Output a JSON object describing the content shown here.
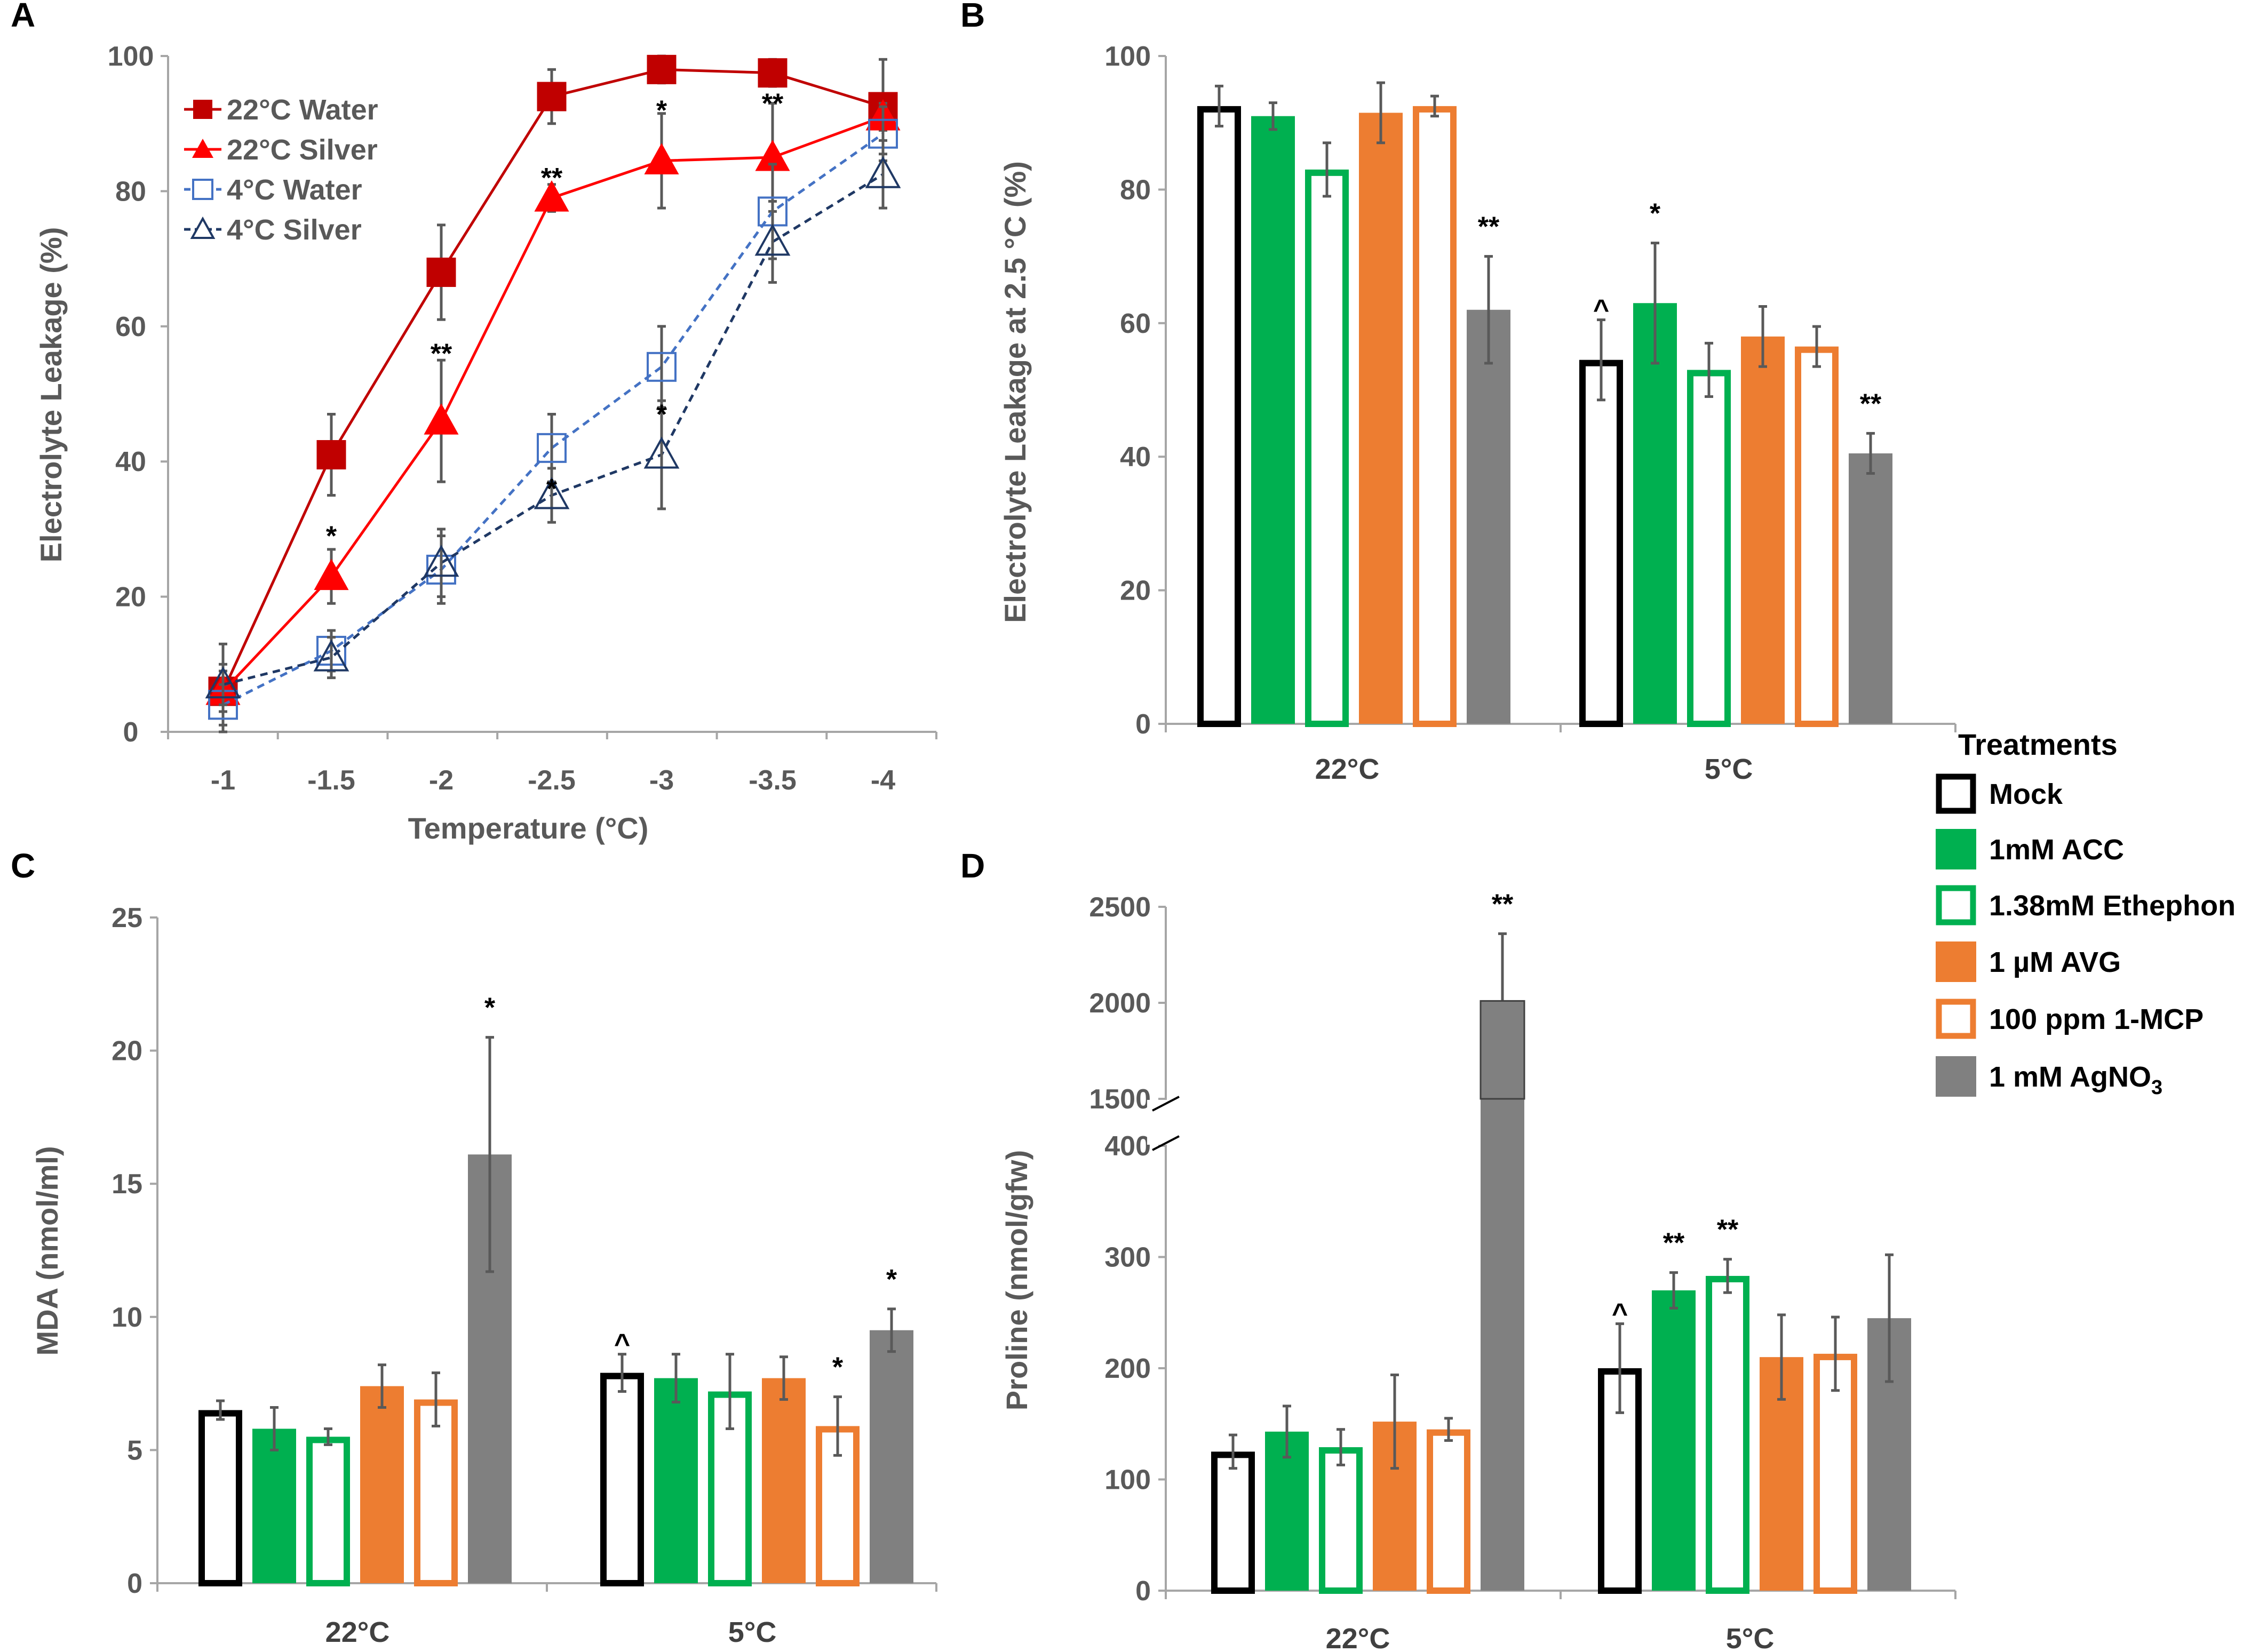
{
  "panels": {
    "A": "A",
    "B": "B",
    "C": "C",
    "D": "D"
  },
  "colors": {
    "water22": "#C00000",
    "silver22": "#FF0000",
    "water4": "#4472C4",
    "silver4": "#1F3864",
    "mock": "#000000",
    "acc": "#00B050",
    "ethephon": "#00B050",
    "avg": "#ED7D31",
    "mcp": "#ED7D31",
    "agno3": "#808080",
    "error": "#595959",
    "axis": "#a6a6a6"
  },
  "treatments": {
    "title": "Treatments",
    "items": [
      {
        "key": "mock",
        "label": "Mock",
        "style": "outline"
      },
      {
        "key": "acc",
        "label": "1mM ACC",
        "style": "fill"
      },
      {
        "key": "ethephon",
        "label": "1.38mM Ethephon",
        "style": "outline"
      },
      {
        "key": "avg",
        "label": "1 µM AVG",
        "style": "fill"
      },
      {
        "key": "mcp",
        "label": "100 ppm 1-MCP",
        "style": "outline"
      },
      {
        "key": "agno3",
        "label": "1 mM AgNO",
        "sub": "3",
        "style": "fill"
      }
    ]
  },
  "chart_data": [
    {
      "id": "A",
      "type": "line",
      "xlabel": "Temperature (°C)",
      "ylabel": "Electrolyte Leakage (%)",
      "ylim": [
        0,
        100
      ],
      "yticks": [
        0,
        20,
        40,
        60,
        80,
        100
      ],
      "categories": [
        "-1",
        "-1.5",
        "-2",
        "-2.5",
        "-3",
        "-3.5",
        "-4"
      ],
      "series": [
        {
          "name": "22°C Water",
          "marker": "square-filled",
          "dash": false,
          "values": [
            6,
            41,
            68,
            94,
            98,
            97.5,
            92.5
          ],
          "err": [
            7,
            6,
            7,
            4,
            2,
            2,
            7
          ]
        },
        {
          "name": "22°C Silver",
          "marker": "triangle-filled",
          "dash": false,
          "values": [
            6,
            23,
            46,
            79,
            84.5,
            85,
            91
          ],
          "err": [
            3,
            4,
            9,
            2,
            7,
            8,
            2
          ]
        },
        {
          "name": "4°C Water",
          "marker": "square-open",
          "dash": true,
          "values": [
            4,
            12,
            24,
            42,
            54,
            77,
            88.5
          ],
          "err": [
            3,
            3,
            5,
            5,
            6,
            7,
            4
          ]
        },
        {
          "name": "4°C Silver",
          "marker": "triangle-open",
          "dash": true,
          "values": [
            7,
            11,
            25,
            35,
            41,
            72.5,
            82.5
          ],
          "err": [
            3,
            3,
            5,
            4,
            8,
            6,
            5
          ]
        }
      ],
      "annotations": [
        {
          "x": "-1.5",
          "y": 29,
          "text": "*"
        },
        {
          "x": "-2",
          "y": 56,
          "text": "**"
        },
        {
          "x": "-2.5",
          "y": 82,
          "text": "**"
        },
        {
          "x": "-2.5",
          "y": 36,
          "text": "*"
        },
        {
          "x": "-3",
          "y": 92,
          "text": "*"
        },
        {
          "x": "-3",
          "y": 47,
          "text": "*"
        },
        {
          "x": "-3.5",
          "y": 93,
          "text": "**"
        }
      ]
    },
    {
      "id": "B",
      "type": "bar",
      "xlabel": "",
      "ylabel": "Electrolyte Leakage at 2.5 °C (%)",
      "ylim": [
        0,
        100
      ],
      "yticks": [
        0,
        20,
        40,
        60,
        80,
        100
      ],
      "categories": [
        "22°C",
        "5°C"
      ],
      "series": [
        {
          "key": "mock",
          "values": [
            92.5,
            54.5
          ],
          "err": [
            3,
            6
          ]
        },
        {
          "key": "acc",
          "values": [
            91,
            63
          ],
          "err": [
            2,
            9
          ]
        },
        {
          "key": "ethephon",
          "values": [
            83,
            53
          ],
          "err": [
            4,
            4
          ]
        },
        {
          "key": "avg",
          "values": [
            91.5,
            58
          ],
          "err": [
            4.5,
            4.5
          ]
        },
        {
          "key": "mcp",
          "values": [
            92.5,
            56.5
          ],
          "err": [
            1.5,
            3
          ]
        },
        {
          "key": "agno3",
          "values": [
            62,
            40.5
          ],
          "err": [
            8,
            3
          ]
        }
      ],
      "annotations": [
        {
          "cat": 0,
          "series": 5,
          "text": "**"
        },
        {
          "cat": 1,
          "series": 0,
          "text": "^"
        },
        {
          "cat": 1,
          "series": 1,
          "text": "*"
        },
        {
          "cat": 1,
          "series": 5,
          "text": "**"
        }
      ]
    },
    {
      "id": "C",
      "type": "bar",
      "xlabel": "",
      "ylabel": "MDA (nmol/ml)",
      "ylim": [
        0,
        25
      ],
      "yticks": [
        0,
        5,
        10,
        15,
        20,
        25
      ],
      "categories": [
        "22°C",
        "5°C"
      ],
      "series": [
        {
          "key": "mock",
          "values": [
            6.5,
            7.9
          ],
          "err": [
            0.35,
            0.7
          ]
        },
        {
          "key": "acc",
          "values": [
            5.8,
            7.7
          ],
          "err": [
            0.8,
            0.9
          ]
        },
        {
          "key": "ethephon",
          "values": [
            5.5,
            7.2
          ],
          "err": [
            0.3,
            1.4
          ]
        },
        {
          "key": "avg",
          "values": [
            7.4,
            7.7
          ],
          "err": [
            0.8,
            0.8
          ]
        },
        {
          "key": "mcp",
          "values": [
            6.9,
            5.9
          ],
          "err": [
            1,
            1.1
          ]
        },
        {
          "key": "agno3",
          "values": [
            16.1,
            9.5
          ],
          "err": [
            4.4,
            0.8
          ]
        }
      ],
      "annotations": [
        {
          "cat": 0,
          "series": 5,
          "text": "*"
        },
        {
          "cat": 1,
          "series": 0,
          "text": "^"
        },
        {
          "cat": 1,
          "series": 4,
          "text": "*"
        },
        {
          "cat": 1,
          "series": 5,
          "text": "*"
        }
      ]
    },
    {
      "id": "D",
      "type": "bar",
      "xlabel": "",
      "ylabel": "Proline (nmol/gfw)",
      "ylim": [
        0,
        2500
      ],
      "axis_break": [
        400,
        1500
      ],
      "yticks": [
        0,
        100,
        200,
        300,
        400,
        1500,
        2000,
        2500
      ],
      "categories": [
        "22°C",
        "5°C"
      ],
      "series": [
        {
          "key": "mock",
          "values": [
            125,
            200
          ],
          "err": [
            15,
            40
          ]
        },
        {
          "key": "acc",
          "values": [
            143,
            270
          ],
          "err": [
            23,
            16
          ]
        },
        {
          "key": "ethephon",
          "values": [
            129,
            283
          ],
          "err": [
            16,
            15
          ]
        },
        {
          "key": "avg",
          "values": [
            152,
            210
          ],
          "err": [
            42,
            38
          ]
        },
        {
          "key": "mcp",
          "values": [
            145,
            213
          ],
          "err": [
            10,
            33
          ]
        },
        {
          "key": "agno3",
          "values": [
            2010,
            245
          ],
          "err": [
            350,
            57
          ]
        }
      ],
      "annotations": [
        {
          "cat": 0,
          "series": 5,
          "text": "**"
        },
        {
          "cat": 1,
          "series": 0,
          "text": "^"
        },
        {
          "cat": 1,
          "series": 1,
          "text": "**"
        },
        {
          "cat": 1,
          "series": 2,
          "text": "**"
        }
      ]
    }
  ]
}
